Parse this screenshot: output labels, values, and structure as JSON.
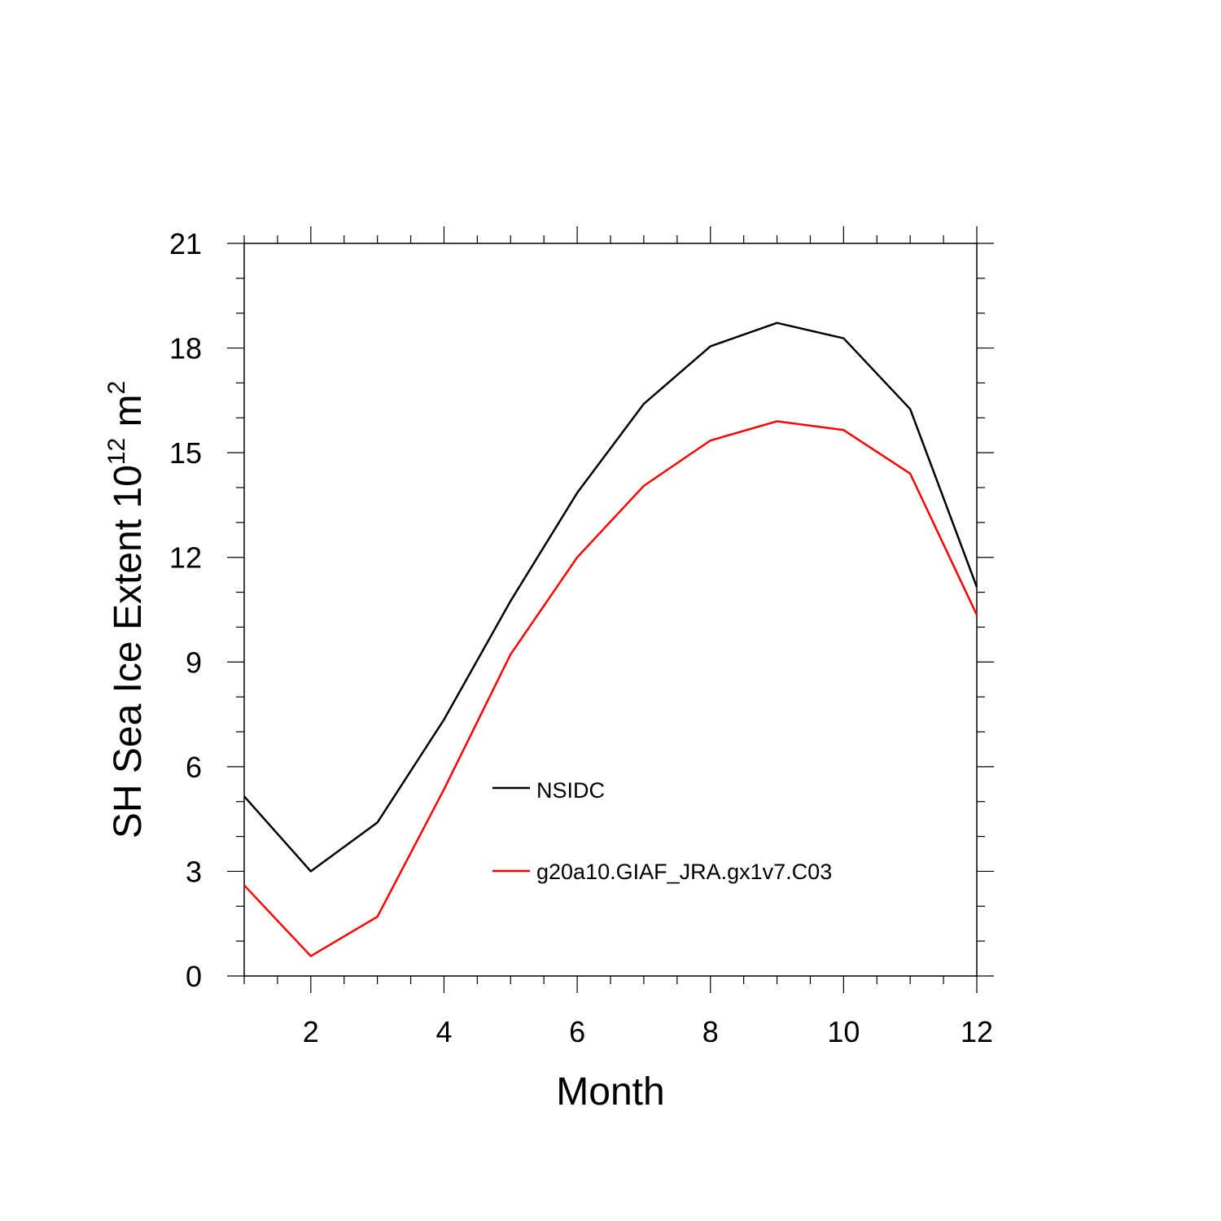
{
  "chart_data": {
    "type": "line",
    "title": "",
    "xlabel": "Month",
    "ylabel_main": "SH Sea Ice Extent 10",
    "ylabel_exp1": "12",
    "ylabel_unit": " m",
    "ylabel_exp2": "2",
    "xlim": [
      1,
      12
    ],
    "ylim": [
      0,
      21
    ],
    "xticks": [
      2,
      4,
      6,
      8,
      10,
      12
    ],
    "yticks": [
      0,
      3,
      6,
      9,
      12,
      15,
      18,
      21
    ],
    "legend_position": "center",
    "series": [
      {
        "name": "NSIDC",
        "color": "#000000",
        "x": [
          1,
          2,
          3,
          4,
          5,
          6,
          7,
          8,
          9,
          10,
          11,
          12
        ],
        "values": [
          5.15,
          3.0,
          4.4,
          7.35,
          10.75,
          13.85,
          16.4,
          18.05,
          18.72,
          18.28,
          16.25,
          11.15
        ]
      },
      {
        "name": "g20a10.GIAF_JRA.gx1v7.C03",
        "color": "#ff0000",
        "x": [
          1,
          2,
          3,
          4,
          5,
          6,
          7,
          8,
          9,
          10,
          11,
          12
        ],
        "values": [
          2.6,
          0.57,
          1.7,
          5.35,
          9.22,
          12.0,
          14.05,
          15.35,
          15.9,
          15.65,
          14.4,
          10.35
        ]
      }
    ]
  }
}
